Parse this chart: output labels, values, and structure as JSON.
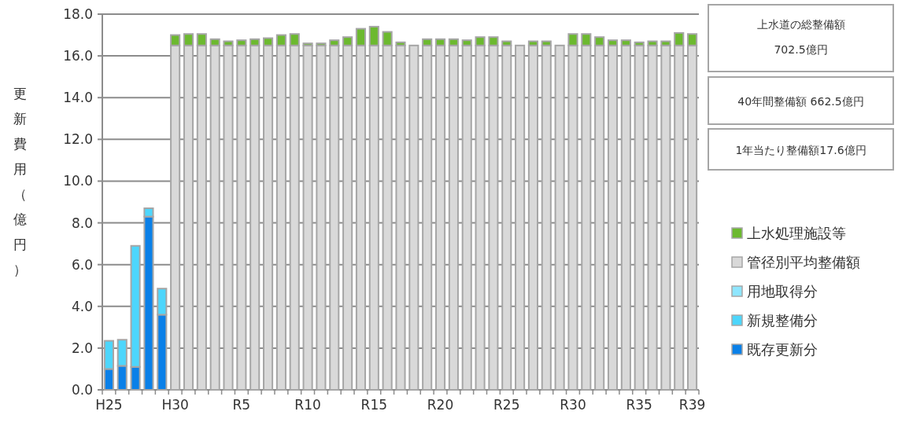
{
  "chart_data": {
    "type": "bar",
    "stacked": true,
    "ylabel": "更新費用（億円）",
    "categories": [
      "H25",
      null,
      null,
      null,
      null,
      "H30",
      null,
      null,
      null,
      null,
      "R5",
      null,
      null,
      null,
      null,
      "R10",
      null,
      null,
      null,
      null,
      "R15",
      null,
      null,
      null,
      null,
      "R20",
      null,
      null,
      null,
      null,
      "R25",
      null,
      null,
      null,
      null,
      "R30",
      null,
      null,
      null,
      null,
      "R35",
      null,
      null,
      null,
      "R39"
    ],
    "series": [
      {
        "name": "既存更新分",
        "color": "#0a80e8",
        "values": [
          1.0,
          1.15,
          1.1,
          8.3,
          3.6,
          null,
          null,
          null,
          null,
          null,
          null,
          null,
          null,
          null,
          null,
          null,
          null,
          null,
          null,
          null,
          null,
          null,
          null,
          null,
          null,
          null,
          null,
          null,
          null,
          null,
          null,
          null,
          null,
          null,
          null,
          null,
          null,
          null,
          null,
          null,
          null,
          null,
          null,
          null,
          null
        ]
      },
      {
        "name": "新規整備分",
        "color": "#4dd6fc",
        "values": [
          1.35,
          1.25,
          5.8,
          0.4,
          1.25,
          null,
          null,
          null,
          null,
          null,
          null,
          null,
          null,
          null,
          null,
          null,
          null,
          null,
          null,
          null,
          null,
          null,
          null,
          null,
          null,
          null,
          null,
          null,
          null,
          null,
          null,
          null,
          null,
          null,
          null,
          null,
          null,
          null,
          null,
          null,
          null,
          null,
          null,
          null,
          null
        ]
      },
      {
        "name": "用地取得分",
        "color": "#8fe6ff",
        "values": [
          0,
          0,
          0,
          0,
          0,
          null,
          null,
          null,
          null,
          null,
          null,
          null,
          null,
          null,
          null,
          null,
          null,
          null,
          null,
          null,
          null,
          null,
          null,
          null,
          null,
          null,
          null,
          null,
          null,
          null,
          null,
          null,
          null,
          null,
          null,
          null,
          null,
          null,
          null,
          null,
          null,
          null,
          null,
          null,
          null
        ]
      },
      {
        "name": "管径別平均整備額",
        "color": "#d9d9d9",
        "values": [
          null,
          null,
          null,
          null,
          null,
          16.5,
          16.5,
          16.5,
          16.5,
          16.5,
          16.5,
          16.5,
          16.5,
          16.5,
          16.5,
          16.5,
          16.5,
          16.5,
          16.5,
          16.5,
          16.5,
          16.5,
          16.5,
          16.5,
          16.5,
          16.5,
          16.5,
          16.5,
          16.5,
          16.5,
          16.5,
          16.5,
          16.5,
          16.5,
          16.5,
          16.5,
          16.5,
          16.5,
          16.5,
          16.5,
          16.5,
          16.5,
          16.5,
          16.5,
          16.5
        ]
      },
      {
        "name": "上水処理施設等",
        "color": "#6cb92f",
        "values": [
          null,
          null,
          null,
          null,
          null,
          0.5,
          0.55,
          0.55,
          0.3,
          0.2,
          0.25,
          0.3,
          0.35,
          0.5,
          0.55,
          0.1,
          0.1,
          0.25,
          0.4,
          0.8,
          0.9,
          0.65,
          0.15,
          0,
          0.3,
          0.3,
          0.3,
          0.25,
          0.4,
          0.4,
          0.2,
          0,
          0.2,
          0.2,
          0,
          0.55,
          0.55,
          0.4,
          0.25,
          0.25,
          0.15,
          0.2,
          0.2,
          0.6,
          0.55
        ]
      }
    ],
    "ylim": [
      0,
      18
    ],
    "yticks": [
      {
        "value": 0,
        "label": "0.0"
      },
      {
        "value": 2,
        "label": "2.0"
      },
      {
        "value": 4,
        "label": "4.0"
      },
      {
        "value": 6,
        "label": "6.0"
      },
      {
        "value": 8,
        "label": "8.0"
      },
      {
        "value": 10,
        "label": "10.0"
      },
      {
        "value": 12,
        "label": "12.0"
      },
      {
        "value": 14,
        "label": "14.0"
      },
      {
        "value": 16,
        "label": "16.0"
      },
      {
        "value": 18,
        "label": "18.0"
      }
    ],
    "grid": "y",
    "legend": "right",
    "annotations": [
      "上水道の総整備額",
      "702.5億円",
      "40年間整備額 662.5億円",
      "1年当たり整備額17.6億円"
    ]
  }
}
